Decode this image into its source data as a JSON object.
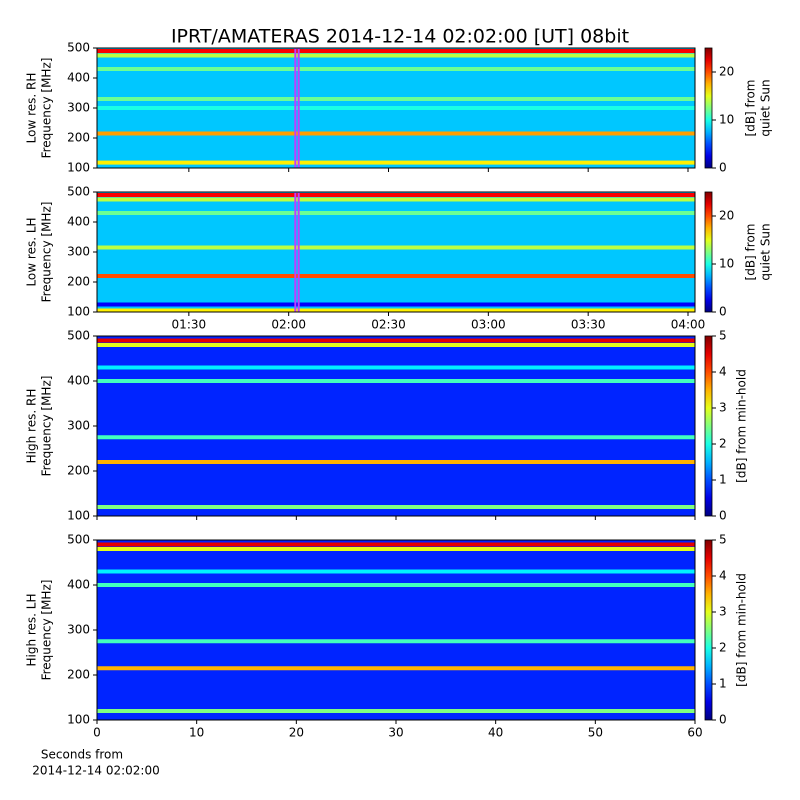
{
  "chart_data": {
    "type": "spectrogram",
    "title": "IPRT/AMATERAS 2014-12-14 02:02:00 [UT]   08bit",
    "time_axis": {
      "xlim": [
        62.4,
        242.1
      ],
      "xticks": [
        {
          "value": 90,
          "label": "01:30"
        },
        {
          "value": 120,
          "label": "02:00"
        },
        {
          "value": 150,
          "label": "02:30"
        },
        {
          "value": 180,
          "label": "03:00"
        },
        {
          "value": 210,
          "label": "03:30"
        },
        {
          "value": 240,
          "label": "04:00"
        }
      ],
      "window": [
        122,
        123
      ],
      "window_color": "#c03cff"
    },
    "seconds_axis": {
      "xlim": [
        0,
        60
      ],
      "xticks": [
        0,
        10,
        20,
        30,
        40,
        50,
        60
      ],
      "xlabel": [
        "Seconds from",
        "2014-12-14 02:02:00"
      ]
    },
    "colormap": "jet",
    "panels": [
      {
        "xaxis": "time_axis",
        "xticklabels": false,
        "ylabel": [
          "Low res. RH",
          "Frequency [MHz]"
        ],
        "ylim": [
          100,
          500
        ],
        "yticks": [
          100,
          200,
          300,
          400,
          500
        ],
        "clim": [
          0,
          25
        ],
        "cticks": [
          0,
          10,
          20
        ],
        "clabel": [
          "[dB] from",
          "quiet Sun"
        ],
        "background": 8,
        "emission": [
          {
            "freq": 490,
            "level": 22
          },
          {
            "freq": 475,
            "level": 14
          },
          {
            "freq": 430,
            "level": 12
          },
          {
            "freq": 330,
            "level": 12
          },
          {
            "freq": 300,
            "level": 10
          },
          {
            "freq": 215,
            "level": 18
          },
          {
            "freq": 118,
            "level": 16
          }
        ]
      },
      {
        "xaxis": "time_axis",
        "xticklabels": true,
        "ylabel": [
          "Low res. LH",
          "Frequency [MHz]"
        ],
        "ylim": [
          100,
          500
        ],
        "yticks": [
          100,
          200,
          300,
          400,
          500
        ],
        "clim": [
          0,
          25
        ],
        "cticks": [
          0,
          10,
          20
        ],
        "clabel": [
          "[dB] from",
          "quiet Sun"
        ],
        "background": 8,
        "emission": [
          {
            "freq": 490,
            "level": 22
          },
          {
            "freq": 475,
            "level": 14
          },
          {
            "freq": 430,
            "level": 12
          },
          {
            "freq": 315,
            "level": 14
          },
          {
            "freq": 220,
            "level": 20
          },
          {
            "freq": 125,
            "level": 3
          },
          {
            "freq": 105,
            "level": 16
          }
        ]
      },
      {
        "xaxis": "seconds_axis",
        "xticklabels": false,
        "ylabel": [
          "High res. RH",
          "Frequency [MHz]"
        ],
        "ylim": [
          100,
          500
        ],
        "yticks": [
          100,
          200,
          300,
          400,
          500
        ],
        "clim": [
          0,
          5
        ],
        "cticks": [
          0,
          1,
          2,
          3,
          4,
          5
        ],
        "clabel": [
          "[dB] from min-hold"
        ],
        "background": 0.8,
        "emission": [
          {
            "freq": 490,
            "level": 4.5
          },
          {
            "freq": 480,
            "level": 3
          },
          {
            "freq": 430,
            "level": 1.8
          },
          {
            "freq": 400,
            "level": 2.2
          },
          {
            "freq": 275,
            "level": 2.2
          },
          {
            "freq": 220,
            "level": 3.5
          },
          {
            "freq": 120,
            "level": 2.5
          }
        ]
      },
      {
        "xaxis": "seconds_axis",
        "xticklabels": true,
        "ylabel": [
          "High res. LH",
          "Frequency [MHz]"
        ],
        "ylim": [
          100,
          500
        ],
        "yticks": [
          100,
          200,
          300,
          400,
          500
        ],
        "clim": [
          0,
          5
        ],
        "cticks": [
          0,
          1,
          2,
          3,
          4,
          5
        ],
        "clabel": [
          "[dB] from min-hold"
        ],
        "background": 0.8,
        "emission": [
          {
            "freq": 490,
            "level": 4.5
          },
          {
            "freq": 480,
            "level": 3
          },
          {
            "freq": 430,
            "level": 1.8
          },
          {
            "freq": 400,
            "level": 2.2
          },
          {
            "freq": 275,
            "level": 2.2
          },
          {
            "freq": 215,
            "level": 3.5
          },
          {
            "freq": 120,
            "level": 2.5
          }
        ]
      }
    ]
  }
}
